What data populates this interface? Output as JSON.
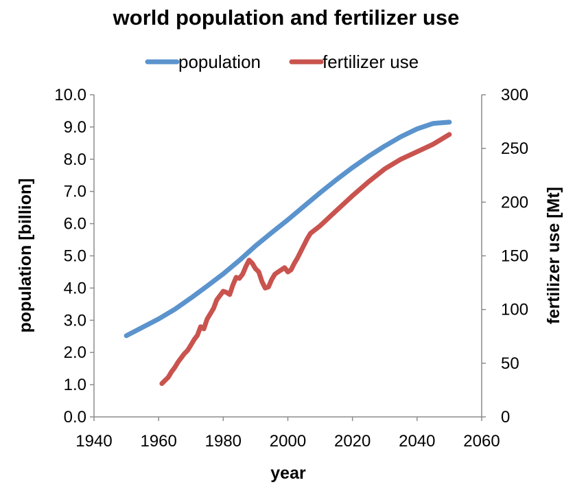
{
  "chart_data": {
    "type": "line",
    "title": "world population and fertilizer use",
    "xlabel": "year",
    "ylabel": "population [billion]",
    "y2label": "fertilizer use [Mt]",
    "xlim": [
      1940,
      2060
    ],
    "ylim": [
      0,
      10
    ],
    "y2lim": [
      0,
      300
    ],
    "x_ticks": [
      "1940",
      "1960",
      "1980",
      "2000",
      "2020",
      "2040",
      "2060"
    ],
    "y_ticks": [
      "0.0",
      "1.0",
      "2.0",
      "3.0",
      "4.0",
      "5.0",
      "6.0",
      "7.0",
      "8.0",
      "9.0",
      "10.0"
    ],
    "y2_ticks": [
      "0",
      "50",
      "100",
      "150",
      "200",
      "250",
      "300"
    ],
    "legend_position": "top",
    "grid": false,
    "series": [
      {
        "name": "population",
        "axis": "left",
        "color": "#5b93cd",
        "x": [
          1950,
          1955,
          1960,
          1965,
          1970,
          1975,
          1980,
          1985,
          1990,
          1995,
          2000,
          2005,
          2010,
          2015,
          2020,
          2025,
          2030,
          2035,
          2040,
          2045,
          2050
        ],
        "y": [
          2.52,
          2.78,
          3.04,
          3.34,
          3.69,
          4.06,
          4.44,
          4.86,
          5.31,
          5.72,
          6.12,
          6.54,
          6.96,
          7.36,
          7.74,
          8.09,
          8.41,
          8.7,
          8.94,
          9.11,
          9.15
        ]
      },
      {
        "name": "fertilizer use",
        "axis": "right",
        "color": "#c9534e",
        "x": [
          1961,
          1962,
          1963,
          1964,
          1965,
          1966,
          1967,
          1968,
          1969,
          1970,
          1971,
          1972,
          1973,
          1974,
          1975,
          1976,
          1977,
          1978,
          1979,
          1980,
          1981,
          1982,
          1983,
          1984,
          1985,
          1986,
          1987,
          1988,
          1989,
          1990,
          1991,
          1992,
          1993,
          1994,
          1995,
          1996,
          1997,
          1998,
          1999,
          2000,
          2001,
          2002,
          2003,
          2004,
          2005,
          2006,
          2007,
          2010,
          2015,
          2020,
          2025,
          2030,
          2035,
          2040,
          2045,
          2050
        ],
        "y": [
          31,
          34,
          37,
          42,
          46,
          51,
          55,
          59,
          62,
          67,
          72,
          76,
          84,
          82,
          91,
          96,
          101,
          109,
          113,
          117,
          116,
          114,
          123,
          130,
          129,
          133,
          140,
          146,
          143,
          138,
          135,
          126,
          120,
          121,
          128,
          133,
          135,
          137,
          139,
          135,
          137,
          143,
          148,
          154,
          160,
          166,
          171,
          178,
          192,
          206,
          219,
          231,
          240,
          247,
          254,
          263
        ]
      }
    ]
  }
}
